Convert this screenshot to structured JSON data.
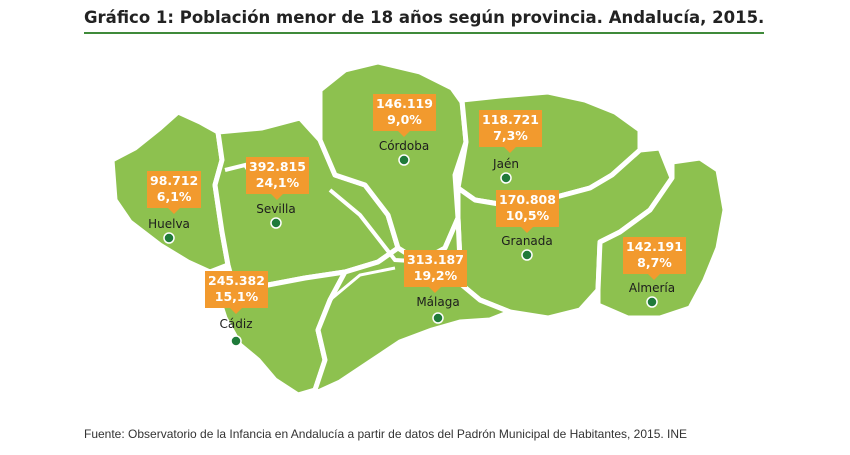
{
  "title": "Gráfico 1: Población menor de 18 años según provincia. Andalucía, 2015.",
  "source": "Fuente: Observatorio de la Infancia en Andalucía a partir de  datos del Padrón Municipal de Habitantes, 2015. INE",
  "colors": {
    "province_fill": "#8dc14f",
    "border": "#ffffff",
    "callout": "#f29a2e",
    "city_dot": "#1f7a3a",
    "title_rule": "#3f8a3a"
  },
  "provinces": [
    {
      "name": "Huelva",
      "value": "98.712",
      "percent": "6,1%"
    },
    {
      "name": "Sevilla",
      "value": "392.815",
      "percent": "24,1%"
    },
    {
      "name": "Córdoba",
      "value": "146.119",
      "percent": "9,0%"
    },
    {
      "name": "Jaén",
      "value": "118.721",
      "percent": "7,3%"
    },
    {
      "name": "Granada",
      "value": "170.808",
      "percent": "10,5%"
    },
    {
      "name": "Almería",
      "value": "142.191",
      "percent": "8,7%"
    },
    {
      "name": "Cádiz",
      "value": "245.382",
      "percent": "15,1%"
    },
    {
      "name": "Málaga",
      "value": "313.187",
      "percent": "19,2%"
    }
  ]
}
